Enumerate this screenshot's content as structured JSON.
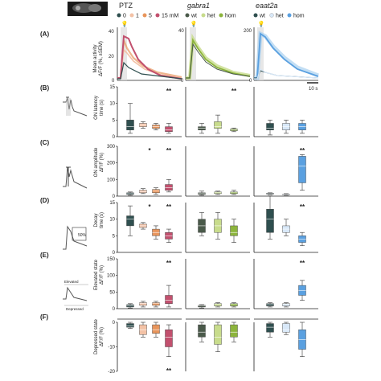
{
  "panels": [
    {
      "letter": "(A)",
      "ylabel": [
        "Mean activity",
        "ΔF/F (%, ±SEM)"
      ]
    },
    {
      "letter": "(B)",
      "ylabel": [
        "ON latency",
        "time (s)"
      ]
    },
    {
      "letter": "(C)",
      "ylabel": [
        "ON amplitude",
        "ΔF/F (%)"
      ]
    },
    {
      "letter": "(D)",
      "ylabel": [
        "Decay",
        "time (s)"
      ]
    },
    {
      "letter": "(E)",
      "ylabel": [
        "Elevated state",
        "ΔF/F (%)"
      ]
    },
    {
      "letter": "(F)",
      "ylabel": [
        "Depressed state",
        "ΔF/F (%)"
      ]
    }
  ],
  "columns": [
    {
      "title": "PTZ",
      "italic": false,
      "legend": [
        "0",
        "1",
        "5",
        "15 mM"
      ],
      "colors": [
        "#2f4f4f",
        "#f3c2a6",
        "#e8955c",
        "#c2506e"
      ]
    },
    {
      "title": "gabra1",
      "italic": true,
      "legend": [],
      "colors": [
        "#4a5a4a",
        "#c8dc8c",
        "#8cb43c"
      ]
    },
    {
      "title": "eaat2a",
      "italic": true,
      "legend": [
        "wt",
        "het",
        "hom"
      ],
      "colors": [
        "#2f4f4f",
        "#d8e8f8",
        "#5aa0e0"
      ]
    }
  ],
  "gabra1_legend": [
    "wt",
    "het",
    "hom"
  ],
  "panelA": {
    "yticks_col1": [
      "40",
      "20",
      "0"
    ],
    "yticks_col2": [
      "40",
      "0"
    ],
    "yticks_col3": [
      "200",
      "0"
    ],
    "scalebar": "10 s"
  },
  "panelB": {
    "yticks": [
      "15",
      "10",
      "5",
      "0"
    ],
    "ymax": 15,
    "sig": [
      "**",
      "**",
      ""
    ],
    "boxes": [
      [
        [
          1,
          2,
          3,
          5,
          10
        ],
        [
          2.5,
          3,
          3.5,
          4,
          4.5
        ],
        [
          2,
          2.5,
          3,
          3.5,
          4
        ],
        [
          1,
          1.5,
          2,
          3,
          4
        ]
      ],
      [
        [
          1,
          2,
          2.5,
          3,
          4
        ],
        [
          1,
          2.5,
          3,
          4.5,
          6.5
        ],
        [
          1.5,
          1.8,
          2,
          2.3,
          2.6
        ]
      ],
      [
        [
          0.5,
          2,
          2.5,
          4,
          5
        ],
        [
          1,
          2,
          3,
          4,
          5
        ],
        [
          1,
          2,
          3,
          4,
          5
        ]
      ]
    ]
  },
  "panelC": {
    "yticks": [
      "300",
      "200",
      "100",
      "0"
    ],
    "ymax": 300,
    "sig": [
      "*",
      "",
      "**"
    ],
    "sig2": [
      "**",
      "",
      ""
    ],
    "boxes": [
      [
        [
          5,
          10,
          15,
          20,
          25
        ],
        [
          15,
          20,
          25,
          35,
          45
        ],
        [
          10,
          20,
          30,
          40,
          50
        ],
        [
          25,
          35,
          50,
          70,
          100
        ]
      ],
      [
        [
          5,
          10,
          15,
          20,
          30
        ],
        [
          10,
          15,
          20,
          25,
          30
        ],
        [
          10,
          15,
          20,
          25,
          35
        ]
      ],
      [
        [
          10,
          12,
          15,
          18,
          20
        ],
        [
          5,
          8,
          10,
          12,
          15
        ],
        [
          35,
          80,
          180,
          240,
          250
        ]
      ]
    ]
  },
  "panelD": {
    "yticks": [
      "15",
      "10",
      "5",
      "0"
    ],
    "ymax": 15,
    "sig": [
      "*",
      "",
      "**"
    ],
    "sig2": [
      "**",
      "",
      ""
    ],
    "boxes": [
      [
        [
          5,
          8,
          10,
          11,
          14
        ],
        [
          7,
          7.5,
          8,
          8.5,
          9
        ],
        [
          4,
          5,
          6,
          7,
          8
        ],
        [
          3,
          4,
          5,
          6,
          7
        ]
      ],
      [
        [
          5,
          6,
          8,
          10,
          12
        ],
        [
          4,
          6,
          8,
          10,
          12
        ],
        [
          3,
          5,
          6,
          8,
          10
        ]
      ],
      [
        [
          4,
          6,
          10,
          13,
          17
        ],
        [
          5,
          6,
          7,
          8,
          10
        ],
        [
          2,
          3,
          4,
          5,
          6
        ]
      ]
    ]
  },
  "panelE": {
    "yticks": [
      "150",
      "100",
      "50",
      "0"
    ],
    "ymax": 150,
    "sig": [
      "**",
      "",
      "**"
    ],
    "boxes": [
      [
        [
          2,
          5,
          8,
          12,
          15
        ],
        [
          5,
          10,
          15,
          18,
          22
        ],
        [
          5,
          10,
          15,
          18,
          22
        ],
        [
          5,
          15,
          25,
          40,
          70
        ]
      ],
      [
        [
          2,
          5,
          8,
          10,
          12
        ],
        [
          5,
          8,
          12,
          15,
          18
        ],
        [
          5,
          8,
          12,
          15,
          18
        ]
      ],
      [
        [
          5,
          8,
          12,
          15,
          18
        ],
        [
          5,
          8,
          12,
          15,
          18
        ],
        [
          25,
          40,
          55,
          70,
          85
        ]
      ]
    ]
  },
  "panelF": {
    "yticks": [
      "0",
      "-10",
      "-20"
    ],
    "ymin": -20,
    "sig": [
      "**",
      "",
      ""
    ],
    "boxes": [
      [
        [
          -2.5,
          -2,
          -1.5,
          -0.5,
          0
        ],
        [
          -6,
          -5,
          -3,
          -1,
          0
        ],
        [
          -6,
          -4.5,
          -3,
          -1,
          0
        ],
        [
          -14,
          -10,
          -6,
          -3,
          -1
        ]
      ],
      [
        [
          -8,
          -6,
          -4,
          -1,
          0
        ],
        [
          -12,
          -9,
          -6,
          -1,
          0
        ],
        [
          -8,
          -6,
          -4,
          -1,
          0
        ]
      ],
      [
        [
          -6,
          -4,
          -2,
          -0.5,
          0
        ],
        [
          -5,
          -4,
          -3,
          -0.5,
          0
        ],
        [
          -14,
          -11,
          -7,
          -3,
          0
        ]
      ]
    ]
  }
}
